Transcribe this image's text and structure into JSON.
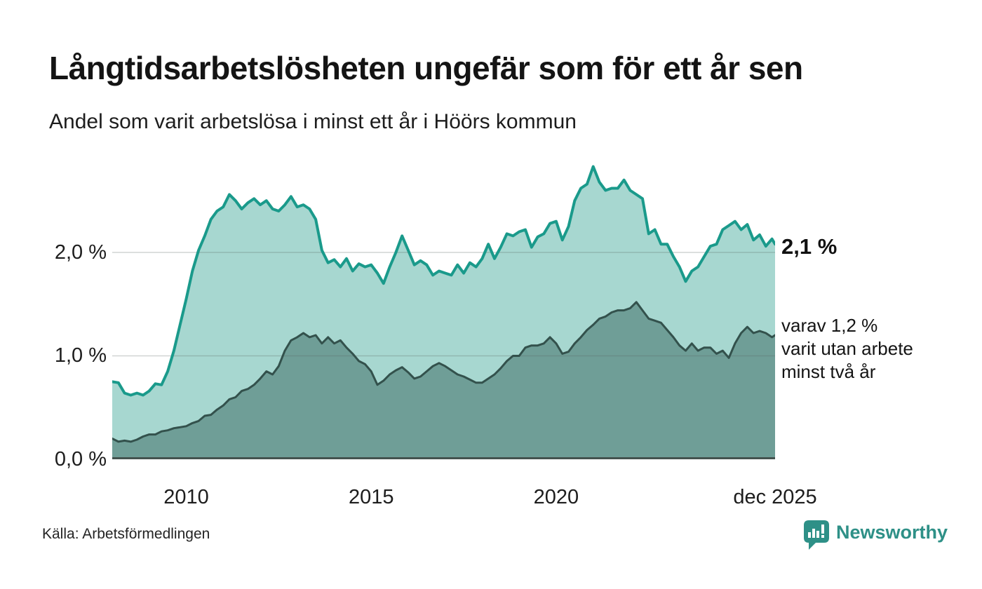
{
  "header": {
    "title": "Långtidsarbetslösheten ungefär som för ett år sen",
    "subtitle": "Andel som varit arbetslösa i minst ett år i Höörs kommun"
  },
  "annotations": {
    "latest_value": "2,1 %",
    "note_lines": [
      "varav 1,2 %",
      "varit utan arbete",
      "minst två år"
    ]
  },
  "footer": {
    "source": "Källa: Arbetsförmedlingen",
    "brand": "Newsworthy"
  },
  "colors": {
    "background": "#ffffff",
    "title_text": "#141414",
    "axis_text": "#1d1d1d",
    "gridline": "rgba(90,100,98,0.28)",
    "baseline": "#44534f",
    "brand_teal": "#2e9087"
  },
  "chart_data": {
    "type": "area",
    "title": "Långtidsarbetslösheten ungefär som för ett år sen",
    "subtitle": "Andel som varit arbetslösa i minst ett år i Höörs kommun",
    "unit": "%",
    "grid": "horizontal",
    "legend_position": "right-inline-annotations",
    "x_axis": {
      "start": 2008.0,
      "end": 2025.9167,
      "points_per_year": 6,
      "ticks": [
        {
          "label": "2010",
          "year": 2010
        },
        {
          "label": "2015",
          "year": 2015
        },
        {
          "label": "2020",
          "year": 2020
        },
        {
          "label": "dec 2025",
          "year": 2025.9167
        }
      ]
    },
    "y_axis": {
      "max": 2.915,
      "min": 0,
      "ticks": [
        {
          "label": "0,0 %",
          "value": 0
        },
        {
          "label": "1,0 %",
          "value": 1.0
        },
        {
          "label": "2,0 %",
          "value": 2.0
        }
      ]
    },
    "series": [
      {
        "name": "Andel som varit arbetslösa i minst ett år",
        "latest_label": "2,1 %",
        "latest_value": 2.1,
        "line_color": "#1a9a8b",
        "fill_color": "#a7d7d0",
        "line_width": 4,
        "values": [
          0.75,
          0.74,
          0.64,
          0.62,
          0.64,
          0.62,
          0.66,
          0.73,
          0.72,
          0.85,
          1.05,
          1.3,
          1.55,
          1.82,
          2.02,
          2.16,
          2.32,
          2.4,
          2.44,
          2.56,
          2.5,
          2.42,
          2.48,
          2.52,
          2.46,
          2.5,
          2.42,
          2.4,
          2.46,
          2.54,
          2.44,
          2.46,
          2.42,
          2.32,
          2.02,
          1.9,
          1.93,
          1.86,
          1.94,
          1.82,
          1.89,
          1.86,
          1.88,
          1.8,
          1.7,
          1.86,
          2.0,
          2.16,
          2.02,
          1.88,
          1.92,
          1.88,
          1.78,
          1.82,
          1.8,
          1.78,
          1.88,
          1.8,
          1.9,
          1.86,
          1.94,
          2.08,
          1.94,
          2.05,
          2.18,
          2.16,
          2.2,
          2.22,
          2.05,
          2.15,
          2.18,
          2.28,
          2.3,
          2.12,
          2.25,
          2.5,
          2.62,
          2.66,
          2.83,
          2.68,
          2.6,
          2.62,
          2.62,
          2.7,
          2.6,
          2.56,
          2.52,
          2.18,
          2.22,
          2.08,
          2.08,
          1.96,
          1.86,
          1.72,
          1.82,
          1.86,
          1.96,
          2.06,
          2.08,
          2.22,
          2.26,
          2.3,
          2.22,
          2.27,
          2.12,
          2.17,
          2.06,
          2.13,
          2.08
        ]
      },
      {
        "name": "varav utan arbete minst två år",
        "latest_label": "varav 1,2 % varit utan arbete minst två år",
        "latest_value": 1.2,
        "line_color": "#33514c",
        "fill_color": "#6f9e97",
        "line_width": 3,
        "values": [
          0.2,
          0.17,
          0.18,
          0.17,
          0.19,
          0.22,
          0.24,
          0.24,
          0.27,
          0.28,
          0.3,
          0.31,
          0.32,
          0.35,
          0.37,
          0.42,
          0.43,
          0.48,
          0.52,
          0.58,
          0.6,
          0.66,
          0.68,
          0.72,
          0.78,
          0.85,
          0.82,
          0.9,
          1.05,
          1.15,
          1.18,
          1.22,
          1.18,
          1.2,
          1.12,
          1.18,
          1.12,
          1.15,
          1.08,
          1.02,
          0.95,
          0.92,
          0.85,
          0.72,
          0.76,
          0.82,
          0.86,
          0.89,
          0.84,
          0.78,
          0.8,
          0.85,
          0.9,
          0.93,
          0.9,
          0.86,
          0.82,
          0.8,
          0.77,
          0.74,
          0.74,
          0.78,
          0.82,
          0.88,
          0.95,
          1.0,
          1.0,
          1.08,
          1.1,
          1.1,
          1.12,
          1.18,
          1.12,
          1.02,
          1.04,
          1.12,
          1.18,
          1.25,
          1.3,
          1.36,
          1.38,
          1.42,
          1.44,
          1.44,
          1.46,
          1.52,
          1.44,
          1.36,
          1.34,
          1.32,
          1.25,
          1.18,
          1.1,
          1.05,
          1.12,
          1.05,
          1.08,
          1.08,
          1.02,
          1.05,
          0.98,
          1.12,
          1.22,
          1.28,
          1.22,
          1.24,
          1.22,
          1.18,
          1.2
        ]
      }
    ]
  }
}
